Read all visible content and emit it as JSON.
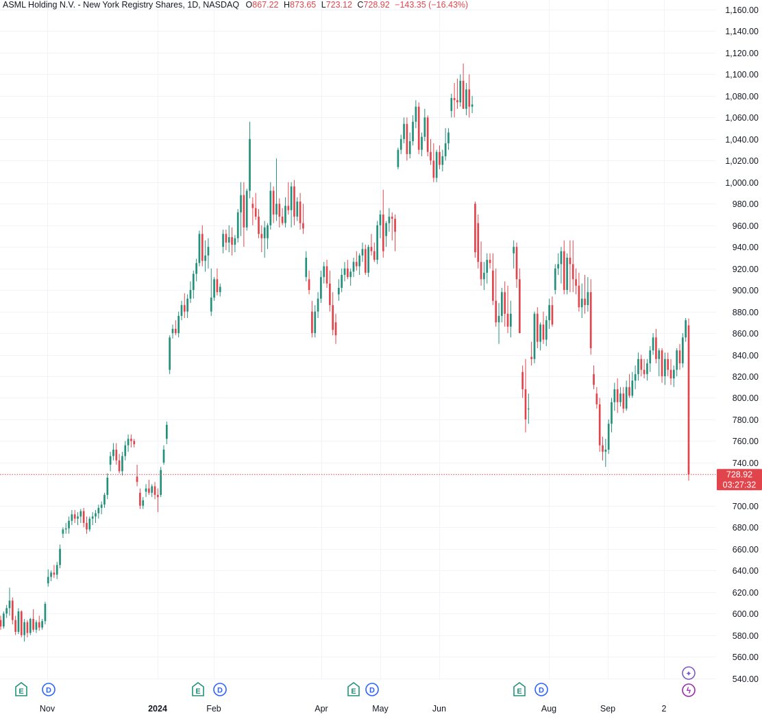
{
  "legend": {
    "title": "ASML Holding N.V. - New York Registry Shares, 1D, NASDAQ",
    "o_label": "O",
    "o_value": "867.22",
    "h_label": "H",
    "h_value": "873.65",
    "l_label": "L",
    "l_value": "723.12",
    "c_label": "C",
    "c_value": "728.92",
    "change": "−143.35 (−16.43%)"
  },
  "price_label": {
    "price": "728.92",
    "countdown": "03:27:32"
  },
  "colors": {
    "up": "#22907a",
    "down": "#e2444c",
    "grid": "#f0f3fa",
    "axis_text": "#131722",
    "earnings": "#22907a",
    "dividend": "#2962ff",
    "diamond": "#7e57c2",
    "lightning": "#9c27b0"
  },
  "events": [
    {
      "type": "E",
      "x": 31
    },
    {
      "type": "D",
      "x": 71
    },
    {
      "type": "E",
      "x": 289
    },
    {
      "type": "D",
      "x": 321
    },
    {
      "type": "E",
      "x": 516
    },
    {
      "type": "D",
      "x": 543
    },
    {
      "type": "E",
      "x": 758
    },
    {
      "type": "D",
      "x": 790
    }
  ],
  "side_icons": [
    {
      "name": "diamond-icon",
      "symbol": "✦"
    },
    {
      "name": "lightning-icon",
      "symbol": "ϟ"
    }
  ],
  "chart_data": {
    "type": "candlestick",
    "title": "ASML Holding N.V. - New York Registry Shares, 1D, NASDAQ",
    "y_ticks": [
      1160,
      1140,
      1120,
      1100,
      1080,
      1060,
      1040,
      1020,
      1000,
      980,
      960,
      940,
      920,
      900,
      880,
      860,
      840,
      820,
      800,
      780,
      760,
      740,
      700,
      680,
      660,
      640,
      620,
      600,
      580,
      560,
      540
    ],
    "y_tick_labels": [
      "1,160.00",
      "1,140.00",
      "1,120.00",
      "1,100.00",
      "1,080.00",
      "1,060.00",
      "1,040.00",
      "1,020.00",
      "1,000.00",
      "980.00",
      "960.00",
      "940.00",
      "920.00",
      "900.00",
      "880.00",
      "860.00",
      "840.00",
      "820.00",
      "800.00",
      "780.00",
      "760.00",
      "740.00",
      "700.00",
      "680.00",
      "660.00",
      "640.00",
      "620.00",
      "600.00",
      "580.00",
      "560.00",
      "540.00"
    ],
    "ylim": [
      532,
      1163
    ],
    "x_ticks": [
      {
        "label": "Nov",
        "x": 69,
        "bold": false
      },
      {
        "label": "2024",
        "x": 230,
        "bold": true
      },
      {
        "label": "Feb",
        "x": 312,
        "bold": false
      },
      {
        "label": "Apr",
        "x": 469,
        "bold": false
      },
      {
        "label": "May",
        "x": 555,
        "bold": false
      },
      {
        "label": "Jun",
        "x": 641,
        "bold": false
      },
      {
        "label": "Aug",
        "x": 801,
        "bold": false
      },
      {
        "label": "Sep",
        "x": 887,
        "bold": false
      },
      {
        "label": "2",
        "x": 969,
        "bold": false
      }
    ],
    "last_price": 728.92,
    "candles": [
      [
        594,
        598,
        585,
        588
      ],
      [
        588,
        602,
        586,
        600
      ],
      [
        600,
        608,
        596,
        605
      ],
      [
        605,
        624,
        598,
        612
      ],
      [
        612,
        615,
        590,
        594
      ],
      [
        594,
        598,
        580,
        583
      ],
      [
        583,
        605,
        581,
        602
      ],
      [
        602,
        603,
        578,
        580
      ],
      [
        580,
        595,
        574,
        592
      ],
      [
        592,
        594,
        578,
        582
      ],
      [
        582,
        596,
        580,
        595
      ],
      [
        595,
        604,
        583,
        585
      ],
      [
        585,
        594,
        582,
        592
      ],
      [
        592,
        598,
        584,
        587
      ],
      [
        587,
        595,
        585,
        593
      ],
      [
        593,
        611,
        590,
        609
      ],
      [
        628,
        641,
        625,
        634
      ],
      [
        634,
        640,
        630,
        638
      ],
      [
        638,
        645,
        633,
        636
      ],
      [
        636,
        648,
        632,
        645
      ],
      [
        645,
        664,
        642,
        660
      ],
      [
        674,
        680,
        670,
        678
      ],
      [
        678,
        684,
        674,
        679
      ],
      [
        679,
        690,
        674,
        686
      ],
      [
        686,
        696,
        682,
        692
      ],
      [
        692,
        696,
        684,
        688
      ],
      [
        688,
        694,
        682,
        690
      ],
      [
        690,
        697,
        684,
        695
      ],
      [
        695,
        698,
        680,
        684
      ],
      [
        684,
        690,
        674,
        678
      ],
      [
        678,
        690,
        676,
        688
      ],
      [
        688,
        694,
        682,
        690
      ],
      [
        690,
        696,
        684,
        693
      ],
      [
        693,
        701,
        688,
        698
      ],
      [
        698,
        704,
        692,
        701
      ],
      [
        701,
        712,
        698,
        710
      ],
      [
        710,
        730,
        706,
        726
      ],
      [
        738,
        750,
        732,
        746
      ],
      [
        746,
        758,
        742,
        752
      ],
      [
        752,
        758,
        738,
        742
      ],
      [
        742,
        748,
        730,
        732
      ],
      [
        732,
        750,
        728,
        746
      ],
      [
        746,
        760,
        742,
        756
      ],
      [
        756,
        766,
        750,
        762
      ],
      [
        762,
        766,
        754,
        760
      ],
      [
        760,
        762,
        754,
        757
      ],
      [
        727,
        738,
        718,
        722
      ],
      [
        712,
        716,
        697,
        700
      ],
      [
        700,
        708,
        697,
        705
      ],
      [
        713,
        720,
        708,
        716
      ],
      [
        716,
        724,
        710,
        712
      ],
      [
        712,
        720,
        708,
        718
      ],
      [
        718,
        722,
        706,
        710
      ],
      [
        710,
        716,
        694,
        708
      ],
      [
        710,
        736,
        708,
        733
      ],
      [
        740,
        756,
        738,
        752
      ],
      [
        762,
        778,
        757,
        775
      ],
      [
        826,
        858,
        822,
        856
      ],
      [
        860,
        868,
        855,
        864
      ],
      [
        864,
        872,
        858,
        860
      ],
      [
        860,
        880,
        856,
        876
      ],
      [
        876,
        890,
        872,
        886
      ],
      [
        886,
        897,
        874,
        880
      ],
      [
        880,
        896,
        874,
        892
      ],
      [
        892,
        908,
        888,
        900
      ],
      [
        900,
        918,
        892,
        915
      ],
      [
        915,
        929,
        908,
        925
      ],
      [
        925,
        955,
        922,
        952
      ],
      [
        952,
        960,
        922,
        927
      ],
      [
        927,
        946,
        917,
        932
      ],
      [
        932,
        948,
        920,
        940
      ],
      [
        880,
        920,
        876,
        893
      ],
      [
        893,
        912,
        890,
        910
      ],
      [
        910,
        920,
        895,
        898
      ],
      [
        898,
        906,
        894,
        903
      ],
      [
        940,
        956,
        934,
        952
      ],
      [
        952,
        956,
        937,
        944
      ],
      [
        944,
        960,
        935,
        949
      ],
      [
        949,
        958,
        932,
        942
      ],
      [
        942,
        951,
        935,
        948
      ],
      [
        948,
        975,
        944,
        972
      ],
      [
        972,
        1000,
        950,
        988
      ],
      [
        988,
        1000,
        940,
        958
      ],
      [
        958,
        994,
        955,
        992
      ],
      [
        992,
        1056,
        985,
        1040
      ],
      [
        980,
        986,
        960,
        976
      ],
      [
        976,
        990,
        965,
        968
      ],
      [
        968,
        975,
        948,
        952
      ],
      [
        952,
        960,
        935,
        948
      ],
      [
        948,
        964,
        930,
        958
      ],
      [
        948,
        962,
        938,
        960
      ],
      [
        960,
        1000,
        956,
        992
      ],
      [
        992,
        996,
        962,
        970
      ],
      [
        970,
        1022,
        964,
        980
      ],
      [
        980,
        985,
        958,
        968
      ],
      [
        968,
        976,
        960,
        962
      ],
      [
        962,
        986,
        958,
        978
      ],
      [
        978,
        1000,
        970,
        974
      ],
      [
        974,
        1000,
        958,
        996
      ],
      [
        996,
        1002,
        960,
        968
      ],
      [
        968,
        986,
        964,
        982
      ],
      [
        982,
        990,
        956,
        962
      ],
      [
        962,
        980,
        952,
        957
      ],
      [
        912,
        936,
        908,
        930
      ],
      [
        910,
        918,
        896,
        900
      ],
      [
        880,
        890,
        856,
        860
      ],
      [
        860,
        886,
        856,
        880
      ],
      [
        880,
        898,
        874,
        892
      ],
      [
        892,
        918,
        888,
        912
      ],
      [
        912,
        926,
        906,
        922
      ],
      [
        922,
        928,
        902,
        906
      ],
      [
        906,
        918,
        880,
        886
      ],
      [
        886,
        898,
        858,
        863
      ],
      [
        870,
        878,
        850,
        858
      ],
      [
        896,
        910,
        890,
        902
      ],
      [
        902,
        920,
        898,
        914
      ],
      [
        914,
        926,
        908,
        920
      ],
      [
        920,
        928,
        910,
        912
      ],
      [
        912,
        920,
        904,
        917
      ],
      [
        917,
        930,
        912,
        926
      ],
      [
        926,
        936,
        918,
        922
      ],
      [
        922,
        934,
        914,
        932
      ],
      [
        932,
        944,
        926,
        938
      ],
      [
        938,
        942,
        914,
        916
      ],
      [
        916,
        942,
        912,
        940
      ],
      [
        940,
        952,
        932,
        936
      ],
      [
        936,
        944,
        926,
        928
      ],
      [
        928,
        964,
        924,
        960
      ],
      [
        960,
        974,
        948,
        970
      ],
      [
        970,
        993,
        930,
        936
      ],
      [
        950,
        964,
        940,
        962
      ],
      [
        962,
        976,
        954,
        968
      ],
      [
        968,
        972,
        946,
        966
      ],
      [
        966,
        970,
        936,
        954
      ],
      [
        1014,
        1032,
        1012,
        1030
      ],
      [
        1030,
        1044,
        1026,
        1040
      ],
      [
        1040,
        1060,
        1036,
        1054
      ],
      [
        1054,
        1060,
        1020,
        1026
      ],
      [
        1026,
        1046,
        1022,
        1038
      ],
      [
        1038,
        1062,
        1034,
        1056
      ],
      [
        1056,
        1076,
        1050,
        1070
      ],
      [
        1070,
        1074,
        1026,
        1030
      ],
      [
        1030,
        1046,
        1024,
        1042
      ],
      [
        1042,
        1068,
        1038,
        1060
      ],
      [
        1060,
        1062,
        1024,
        1028
      ],
      [
        1028,
        1040,
        1016,
        1020
      ],
      [
        1020,
        1036,
        1000,
        1004
      ],
      [
        1004,
        1030,
        1000,
        1028
      ],
      [
        1028,
        1034,
        1012,
        1016
      ],
      [
        1016,
        1030,
        1010,
        1024
      ],
      [
        1024,
        1050,
        1020,
        1036
      ],
      [
        1036,
        1050,
        1030,
        1046
      ],
      [
        1066,
        1082,
        1060,
        1078
      ],
      [
        1078,
        1092,
        1060,
        1076
      ],
      [
        1076,
        1096,
        1068,
        1074
      ],
      [
        1074,
        1100,
        1070,
        1094
      ],
      [
        1094,
        1110,
        1068,
        1068
      ],
      [
        1068,
        1092,
        1062,
        1086
      ],
      [
        1086,
        1100,
        1060,
        1070
      ],
      [
        1070,
        1080,
        1064,
        1072
      ],
      [
        980,
        982,
        930,
        935
      ],
      [
        962,
        970,
        920,
        926
      ],
      [
        926,
        945,
        904,
        910
      ],
      [
        910,
        926,
        900,
        916
      ],
      [
        916,
        934,
        906,
        928
      ],
      [
        928,
        934,
        920,
        925
      ],
      [
        918,
        934,
        886,
        890
      ],
      [
        890,
        920,
        866,
        870
      ],
      [
        870,
        888,
        850,
        876
      ],
      [
        876,
        902,
        870,
        898
      ],
      [
        898,
        908,
        866,
        878
      ],
      [
        878,
        904,
        860,
        866
      ],
      [
        866,
        890,
        856,
        878
      ],
      [
        934,
        946,
        920,
        940
      ],
      [
        940,
        944,
        902,
        910
      ],
      [
        910,
        920,
        860,
        860
      ],
      [
        824,
        830,
        800,
        808
      ],
      [
        808,
        836,
        768,
        780
      ],
      [
        790,
        804,
        776,
        790
      ],
      [
        838,
        852,
        830,
        836
      ],
      [
        836,
        880,
        832,
        878
      ],
      [
        878,
        884,
        846,
        852
      ],
      [
        852,
        870,
        844,
        868
      ],
      [
        868,
        880,
        850,
        854
      ],
      [
        854,
        876,
        848,
        872
      ],
      [
        872,
        892,
        864,
        886
      ],
      [
        886,
        894,
        866,
        868
      ],
      [
        900,
        924,
        896,
        920
      ],
      [
        920,
        934,
        914,
        924
      ],
      [
        924,
        940,
        906,
        936
      ],
      [
        936,
        946,
        896,
        900
      ],
      [
        900,
        934,
        896,
        930
      ],
      [
        930,
        946,
        898,
        924
      ],
      [
        924,
        946,
        898,
        910
      ],
      [
        910,
        920,
        896,
        904
      ],
      [
        904,
        916,
        880,
        884
      ],
      [
        884,
        906,
        874,
        892
      ],
      [
        892,
        914,
        878,
        886
      ],
      [
        886,
        912,
        880,
        898
      ],
      [
        898,
        910,
        840,
        846
      ],
      [
        822,
        830,
        808,
        812
      ],
      [
        804,
        810,
        790,
        794
      ],
      [
        794,
        800,
        750,
        756
      ],
      [
        756,
        764,
        742,
        750
      ],
      [
        750,
        762,
        736,
        752
      ],
      [
        752,
        780,
        748,
        776
      ],
      [
        776,
        800,
        768,
        796
      ],
      [
        796,
        814,
        788,
        808
      ],
      [
        808,
        818,
        786,
        796
      ],
      [
        796,
        810,
        792,
        804
      ],
      [
        804,
        810,
        786,
        790
      ],
      [
        790,
        816,
        788,
        810
      ],
      [
        810,
        822,
        800,
        802
      ],
      [
        802,
        824,
        800,
        816
      ],
      [
        816,
        830,
        808,
        822
      ],
      [
        822,
        842,
        816,
        836
      ],
      [
        836,
        840,
        820,
        826
      ],
      [
        826,
        836,
        818,
        822
      ],
      [
        822,
        836,
        816,
        832
      ],
      [
        832,
        848,
        824,
        844
      ],
      [
        844,
        860,
        840,
        856
      ],
      [
        856,
        864,
        832,
        836
      ],
      [
        836,
        846,
        820,
        844
      ],
      [
        844,
        846,
        814,
        820
      ],
      [
        820,
        842,
        812,
        836
      ],
      [
        836,
        842,
        820,
        826
      ],
      [
        826,
        836,
        812,
        818
      ],
      [
        818,
        830,
        810,
        826
      ],
      [
        826,
        846,
        820,
        844
      ],
      [
        844,
        850,
        826,
        832
      ],
      [
        832,
        860,
        828,
        856
      ],
      [
        856,
        874,
        852,
        872
      ],
      [
        867.22,
        873.65,
        723.12,
        728.92
      ]
    ]
  }
}
